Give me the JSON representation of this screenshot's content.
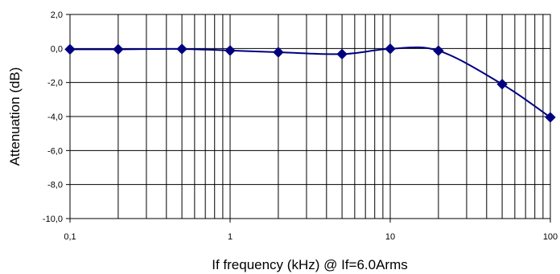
{
  "chart_data": {
    "type": "line",
    "title": "",
    "xlabel": "If frequency (kHz) @ If=6.0Arms",
    "ylabel": "Attenuation (dB)",
    "xscale": "log",
    "xlim": [
      0.1,
      100
    ],
    "ylim": [
      -10,
      2
    ],
    "grid": true,
    "legend": "none",
    "x_tick_labels": [
      {
        "value": 0.1,
        "label": "0,1"
      },
      {
        "value": 1,
        "label": "1"
      },
      {
        "value": 10,
        "label": "10"
      },
      {
        "value": 100,
        "label": "100"
      }
    ],
    "y_tick_labels": [
      {
        "value": 2,
        "label": "2,0"
      },
      {
        "value": 0,
        "label": "0,0"
      },
      {
        "value": -2,
        "label": "-2,0"
      },
      {
        "value": -4,
        "label": "-4,0"
      },
      {
        "value": -6,
        "label": "-6,0"
      },
      {
        "value": -8,
        "label": "-8,0"
      },
      {
        "value": -10,
        "label": "-10,0"
      }
    ],
    "series": [
      {
        "color": "#000080",
        "marker_color": "#00007f",
        "points": [
          {
            "x": 0.1,
            "y": -0.05
          },
          {
            "x": 0.2,
            "y": -0.05
          },
          {
            "x": 0.5,
            "y": -0.03
          },
          {
            "x": 1,
            "y": -0.12
          },
          {
            "x": 2,
            "y": -0.22
          },
          {
            "x": 5,
            "y": -0.33
          },
          {
            "x": 10,
            "y": -0.02
          },
          {
            "x": 20,
            "y": -0.13
          },
          {
            "x": 50,
            "y": -2.1
          },
          {
            "x": 100,
            "y": -4.05
          }
        ]
      }
    ]
  }
}
